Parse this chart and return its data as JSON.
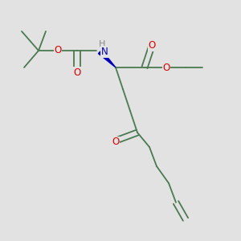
{
  "bg_color": "#e2e2e2",
  "bond_color": "#4a7a50",
  "atom_colors": {
    "O": "#dd0000",
    "N": "#0000bb",
    "H": "#888888",
    "C": "#4a7a50"
  },
  "lw": 1.3,
  "fontsize": 8.5
}
